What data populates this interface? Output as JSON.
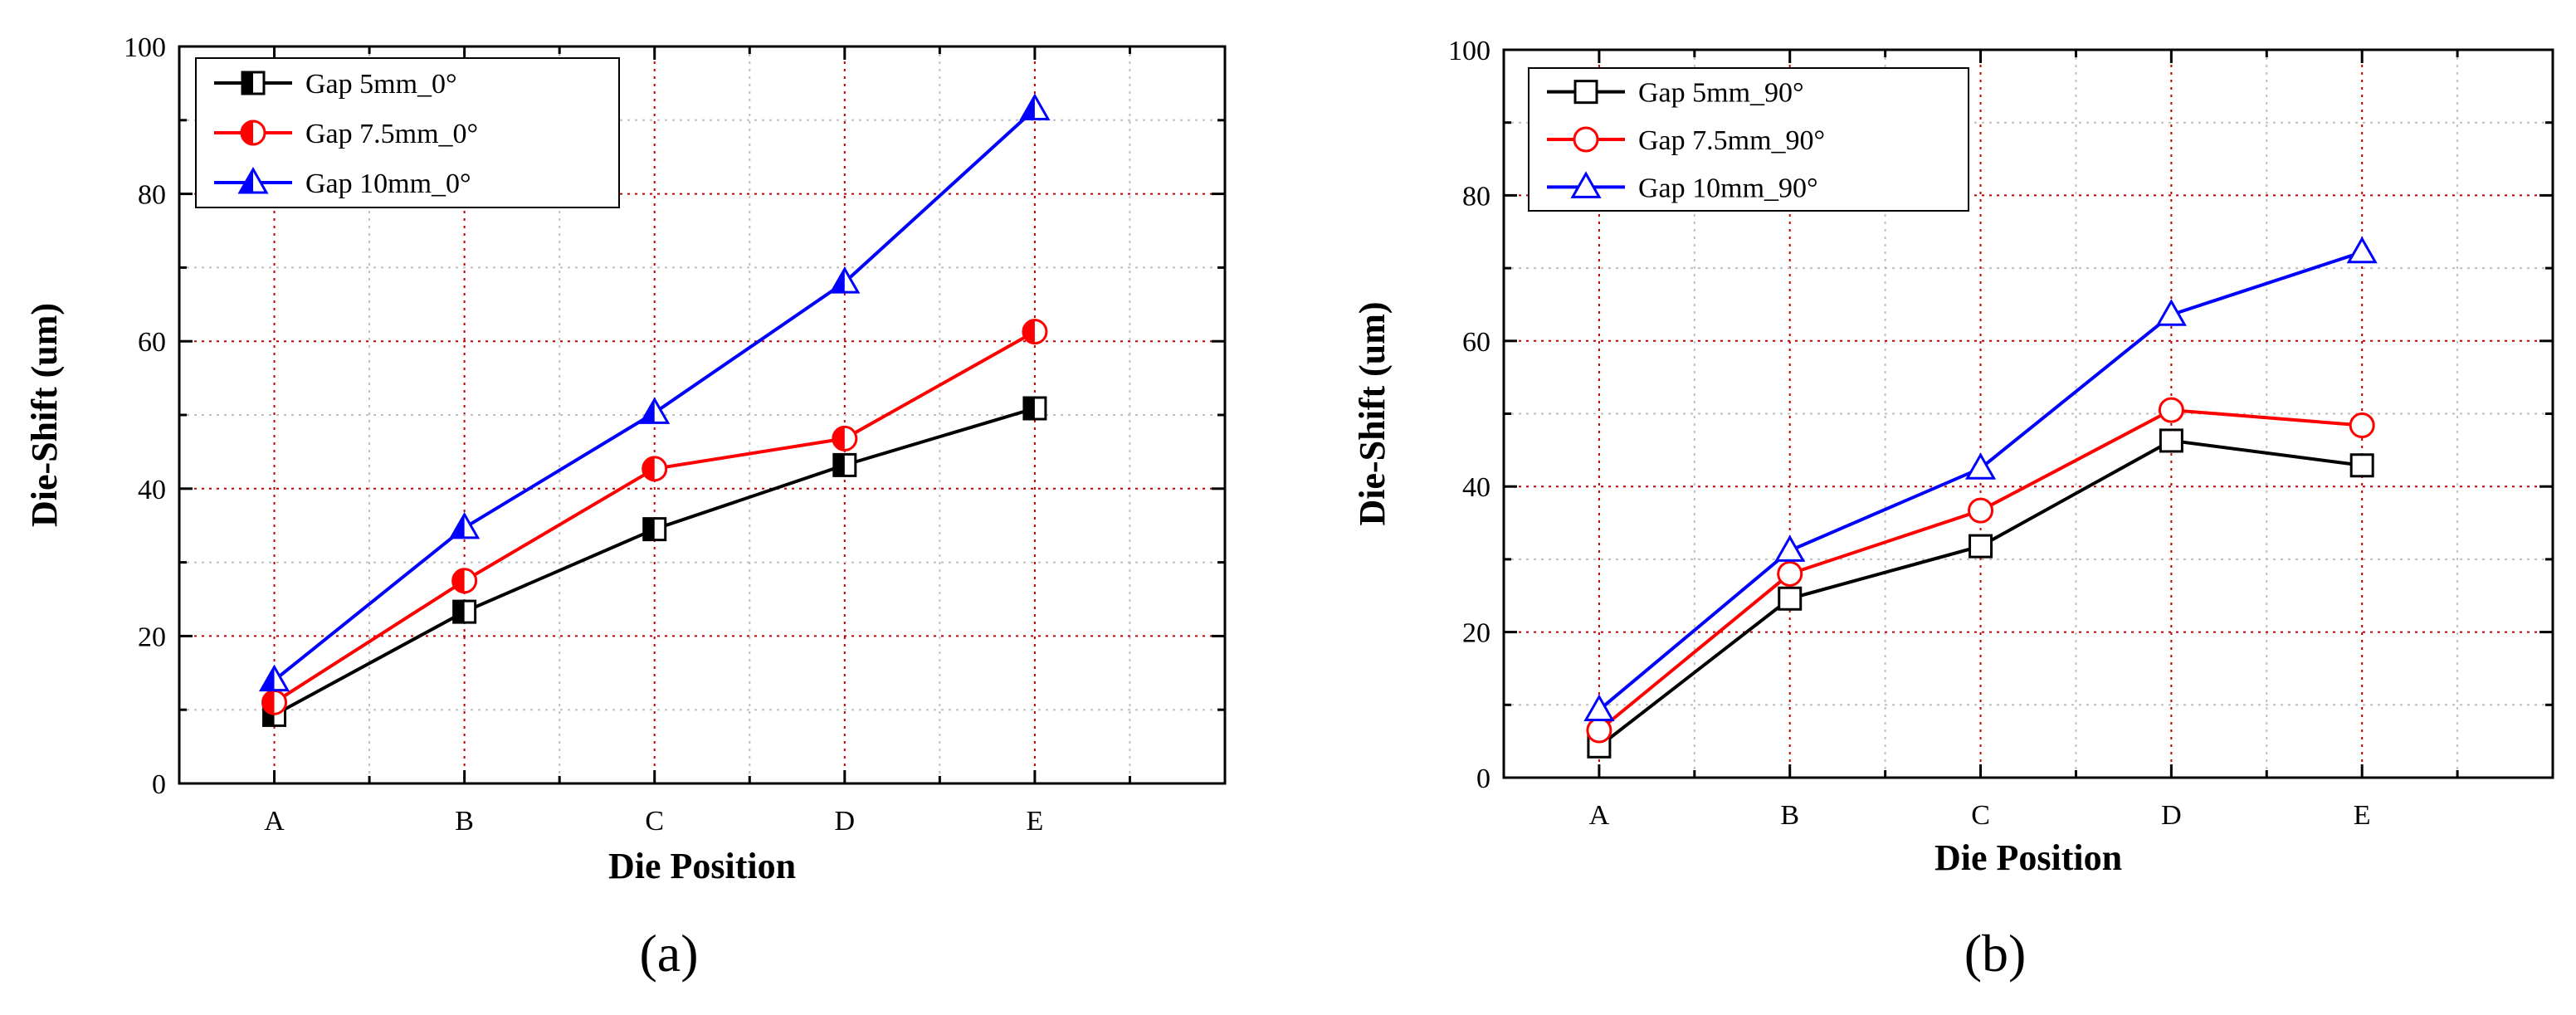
{
  "chart_data": [
    {
      "type": "line",
      "panel_label": "(a)",
      "xlabel": "Die Position",
      "ylabel": "Die-Shift (um)",
      "categories": [
        "A",
        "B",
        "C",
        "D",
        "E"
      ],
      "ylim": [
        0,
        100
      ],
      "yticks": [
        0,
        20,
        40,
        60,
        80,
        100
      ],
      "grid": true,
      "legend_position": "top-left",
      "series": [
        {
          "name": "Gap 5mm_0°",
          "color": "#000000",
          "marker": "square-half",
          "values": [
            9.3,
            23.3,
            34.5,
            43.2,
            50.9
          ]
        },
        {
          "name": "Gap 7.5mm_0°",
          "color": "#ff0000",
          "marker": "circle-half",
          "values": [
            11,
            27.5,
            42.7,
            46.8,
            61.3
          ]
        },
        {
          "name": "Gap 10mm_0°",
          "color": "#0000ff",
          "marker": "triangle-half",
          "values": [
            14,
            34.7,
            50.3,
            68,
            91.5
          ]
        }
      ]
    },
    {
      "type": "line",
      "panel_label": "(b)",
      "xlabel": "Die Position",
      "ylabel": "Die-Shift (um)",
      "categories": [
        "A",
        "B",
        "C",
        "D",
        "E"
      ],
      "ylim": [
        0,
        100
      ],
      "yticks": [
        0,
        20,
        40,
        60,
        80,
        100
      ],
      "grid": true,
      "legend_position": "top-left",
      "series": [
        {
          "name": "Gap 5mm_90°",
          "color": "#000000",
          "marker": "square-open",
          "values": [
            4.3,
            24.6,
            31.8,
            46.3,
            42.9
          ]
        },
        {
          "name": "Gap 7.5mm_90°",
          "color": "#ff0000",
          "marker": "circle-open",
          "values": [
            6.5,
            28,
            36.7,
            50.5,
            48.4
          ]
        },
        {
          "name": "Gap 10mm_90°",
          "color": "#0000ff",
          "marker": "triangle-open",
          "values": [
            9.3,
            31.2,
            42.5,
            63.6,
            72.2
          ]
        }
      ]
    }
  ]
}
